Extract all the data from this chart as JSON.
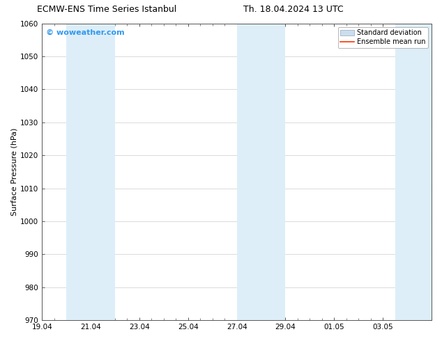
{
  "title_left": "ECMW-ENS Time Series Istanbul",
  "title_right": "Th. 18.04.2024 13 UTC",
  "ylabel": "Surface Pressure (hPa)",
  "ylim": [
    970,
    1060
  ],
  "yticks": [
    970,
    980,
    990,
    1000,
    1010,
    1020,
    1030,
    1040,
    1050,
    1060
  ],
  "x_min": 0.0,
  "x_max": 16.0,
  "xtick_major_positions": [
    0,
    2,
    4,
    6,
    8,
    10,
    12,
    14
  ],
  "xtick_labels": [
    "19.04",
    "21.04",
    "23.04",
    "25.04",
    "27.04",
    "29.04",
    "01.05",
    "03.05"
  ],
  "shaded_regions": [
    {
      "x_start": 1.0,
      "x_end": 3.0
    },
    {
      "x_start": 8.0,
      "x_end": 10.0
    },
    {
      "x_start": 14.5,
      "x_end": 16.0
    }
  ],
  "shaded_color": "#ddeef8",
  "watermark_text": "© woweather.com",
  "watermark_color": "#3399ee",
  "legend_std_color": "#ccddee",
  "legend_std_edge": "#aabbcc",
  "legend_mean_color": "#ff3300",
  "bg_color": "#ffffff",
  "grid_color": "#cccccc",
  "spine_color": "#555555",
  "title_fontsize": 9,
  "tick_fontsize": 7.5,
  "ylabel_fontsize": 8,
  "watermark_fontsize": 8,
  "legend_fontsize": 7
}
